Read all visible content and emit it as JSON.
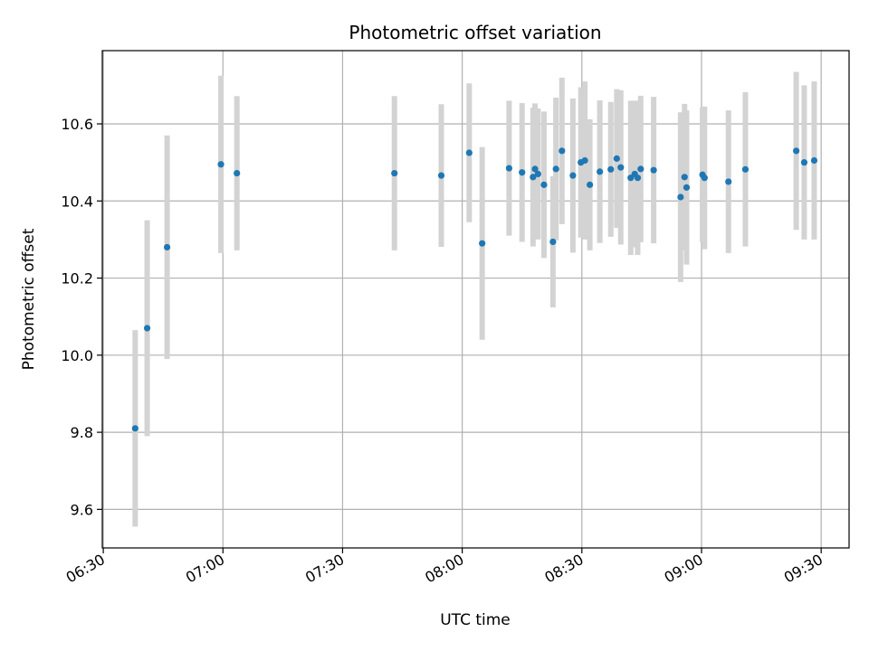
{
  "chart_data": {
    "type": "scatter",
    "title": "Photometric offset variation",
    "xlabel": "UTC time",
    "ylabel": "Photometric offset",
    "x_ticks": [
      "06:30",
      "07:00",
      "07:30",
      "08:00",
      "08:30",
      "09:00",
      "09:30"
    ],
    "y_ticks": [
      "9.6",
      "9.8",
      "10.0",
      "10.2",
      "10.4",
      "10.6"
    ],
    "xlim": [
      "06:29:45",
      "09:37:00"
    ],
    "ylim": [
      9.5,
      10.79
    ],
    "grid": true,
    "colors": {
      "point": "#1f77b4",
      "errorbar": "#d3d3d3",
      "grid": "#b0b0b0"
    },
    "points": [
      {
        "x": "06:38:00",
        "y": 9.81,
        "yerr": 0.255
      },
      {
        "x": "06:41:00",
        "y": 10.07,
        "yerr": 0.28
      },
      {
        "x": "06:46:00",
        "y": 10.28,
        "yerr": 0.29
      },
      {
        "x": "06:59:30",
        "y": 10.495,
        "yerr": 0.23
      },
      {
        "x": "07:03:30",
        "y": 10.472,
        "yerr": 0.2
      },
      {
        "x": "07:43:00",
        "y": 10.472,
        "yerr": 0.2
      },
      {
        "x": "07:54:45",
        "y": 10.466,
        "yerr": 0.185
      },
      {
        "x": "08:01:45",
        "y": 10.525,
        "yerr": 0.18
      },
      {
        "x": "08:05:00",
        "y": 10.29,
        "yerr": 0.25
      },
      {
        "x": "08:11:45",
        "y": 10.485,
        "yerr": 0.175
      },
      {
        "x": "08:15:00",
        "y": 10.474,
        "yerr": 0.18
      },
      {
        "x": "08:17:45",
        "y": 10.462,
        "yerr": 0.18
      },
      {
        "x": "08:18:15",
        "y": 10.483,
        "yerr": 0.17
      },
      {
        "x": "08:19:00",
        "y": 10.47,
        "yerr": 0.17
      },
      {
        "x": "08:20:30",
        "y": 10.442,
        "yerr": 0.19
      },
      {
        "x": "08:22:45",
        "y": 10.294,
        "yerr": 0.17
      },
      {
        "x": "08:23:30",
        "y": 10.483,
        "yerr": 0.185
      },
      {
        "x": "08:25:00",
        "y": 10.53,
        "yerr": 0.19
      },
      {
        "x": "08:27:45",
        "y": 10.466,
        "yerr": 0.2
      },
      {
        "x": "08:29:45",
        "y": 10.5,
        "yerr": 0.195
      },
      {
        "x": "08:30:45",
        "y": 10.505,
        "yerr": 0.205
      },
      {
        "x": "08:32:00",
        "y": 10.442,
        "yerr": 0.17
      },
      {
        "x": "08:34:30",
        "y": 10.476,
        "yerr": 0.185
      },
      {
        "x": "08:37:15",
        "y": 10.482,
        "yerr": 0.175
      },
      {
        "x": "08:38:45",
        "y": 10.51,
        "yerr": 0.18
      },
      {
        "x": "08:39:45",
        "y": 10.487,
        "yerr": 0.2
      },
      {
        "x": "08:42:15",
        "y": 10.46,
        "yerr": 0.2
      },
      {
        "x": "08:43:15",
        "y": 10.47,
        "yerr": 0.19
      },
      {
        "x": "08:44:00",
        "y": 10.46,
        "yerr": 0.2
      },
      {
        "x": "08:44:45",
        "y": 10.483,
        "yerr": 0.19
      },
      {
        "x": "08:48:00",
        "y": 10.48,
        "yerr": 0.19
      },
      {
        "x": "08:54:45",
        "y": 10.41,
        "yerr": 0.22
      },
      {
        "x": "08:55:45",
        "y": 10.462,
        "yerr": 0.19
      },
      {
        "x": "08:56:15",
        "y": 10.435,
        "yerr": 0.2
      },
      {
        "x": "09:00:15",
        "y": 10.468,
        "yerr": 0.175
      },
      {
        "x": "09:00:45",
        "y": 10.46,
        "yerr": 0.185
      },
      {
        "x": "09:06:45",
        "y": 10.45,
        "yerr": 0.185
      },
      {
        "x": "09:11:00",
        "y": 10.482,
        "yerr": 0.2
      },
      {
        "x": "09:23:45",
        "y": 10.53,
        "yerr": 0.205
      },
      {
        "x": "09:25:45",
        "y": 10.5,
        "yerr": 0.2
      },
      {
        "x": "09:28:15",
        "y": 10.505,
        "yerr": 0.205
      }
    ]
  }
}
